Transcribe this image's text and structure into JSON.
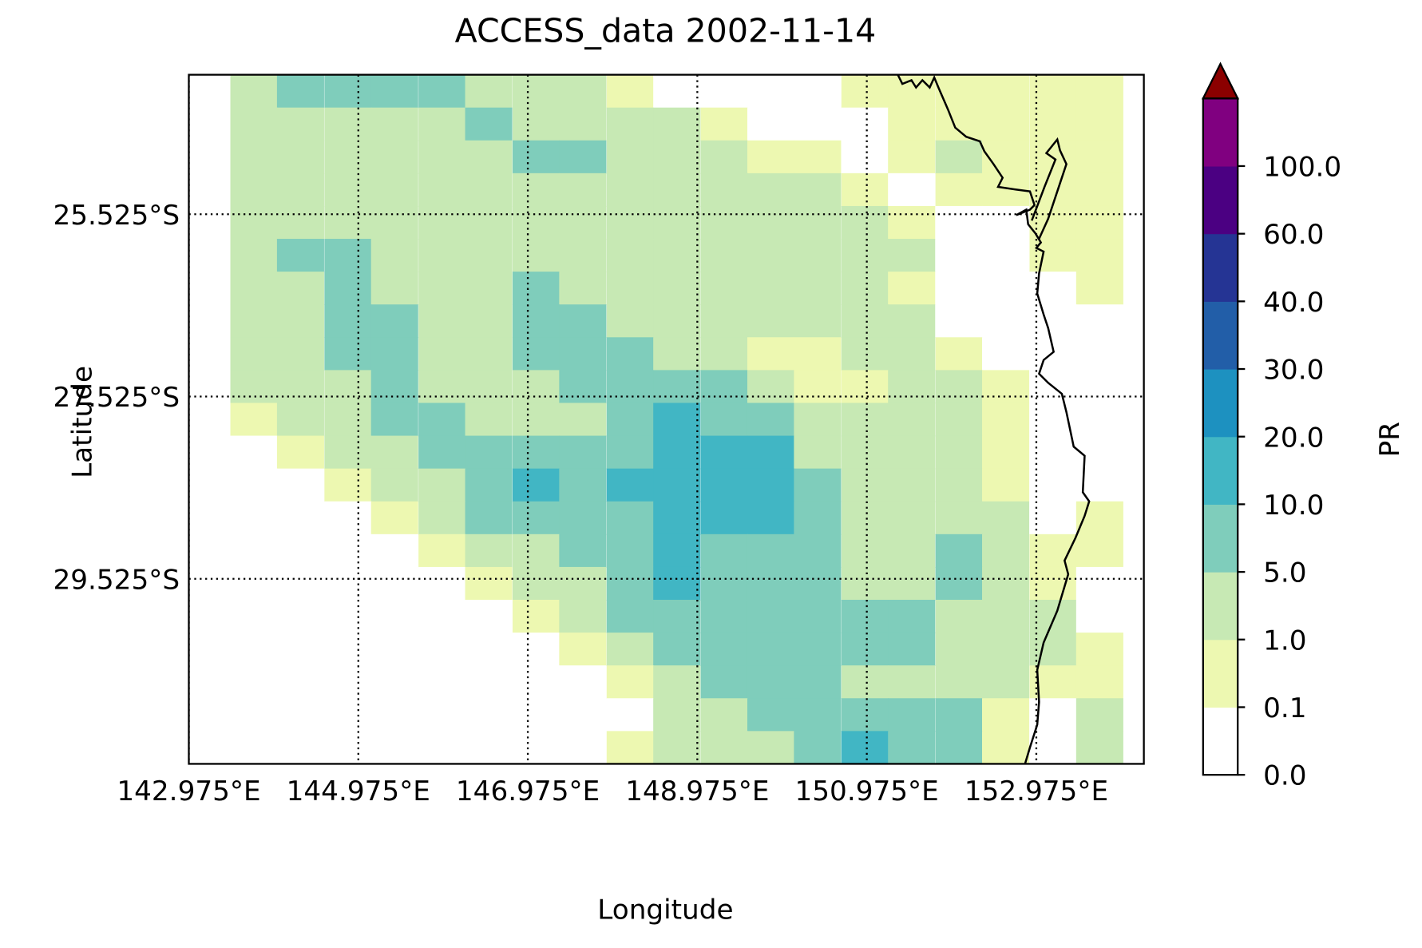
{
  "chart_data": {
    "type": "heatmap",
    "title": "ACCESS_data 2002-11-14",
    "x_label": "Longitude",
    "y_label": "Latitude",
    "colorbar_label": "PR",
    "xlim": [
      142.975,
      154.244
    ],
    "ylim": [
      -31.555,
      -23.995
    ],
    "xticks": [
      {
        "value": 142.975,
        "label": "142.975°E"
      },
      {
        "value": 144.975,
        "label": "144.975°E"
      },
      {
        "value": 146.975,
        "label": "146.975°E"
      },
      {
        "value": 148.975,
        "label": "148.975°E"
      },
      {
        "value": 150.975,
        "label": "150.975°E"
      },
      {
        "value": 152.975,
        "label": "152.975°E"
      }
    ],
    "yticks": [
      {
        "value": -25.525,
        "label": "25.525°S"
      },
      {
        "value": -27.525,
        "label": "27.525°S"
      },
      {
        "value": -29.525,
        "label": "29.525°S"
      }
    ],
    "grid": true,
    "colorbar_ticks": [
      {
        "value": 0,
        "label": "0.0"
      },
      {
        "value": 0.1,
        "label": "0.1"
      },
      {
        "value": 1,
        "label": "1.0"
      },
      {
        "value": 5,
        "label": "5.0"
      },
      {
        "value": 10,
        "label": "10.0"
      },
      {
        "value": 20,
        "label": "20.0"
      },
      {
        "value": 30,
        "label": "30.0"
      },
      {
        "value": 40,
        "label": "40.0"
      },
      {
        "value": 60,
        "label": "60.0"
      },
      {
        "value": 100,
        "label": "100.0"
      }
    ],
    "colors": [
      "#ffffff",
      "#edf8b1",
      "#c7e9b4",
      "#7fcdbb",
      "#41b6c4",
      "#1d91c0",
      "#225ea8",
      "#253494",
      "#4b0082",
      "#800080"
    ],
    "extend_color": "#8b0000",
    "x": [
      143.74,
      144.29,
      144.85,
      145.4,
      145.96,
      146.51,
      147.07,
      147.62,
      148.18,
      148.73,
      149.29,
      149.84,
      150.39,
      150.95,
      151.5,
      152.06,
      152.61,
      153.17,
      153.72
    ],
    "y": [
      -24.175,
      -24.535,
      -24.895,
      -25.255,
      -25.615,
      -25.975,
      -26.335,
      -26.695,
      -27.055,
      -27.415,
      -27.775,
      -28.135,
      -28.495,
      -28.855,
      -29.215,
      -29.575,
      -29.935,
      -30.295,
      -30.655,
      -31.015,
      -31.375
    ],
    "z": [
      [
        3,
        7,
        7,
        7,
        7,
        3,
        3,
        3,
        0.5,
        0.05,
        0.05,
        0.05,
        0.05,
        0.5,
        0.5,
        0.5,
        0.5,
        0.5,
        0.5
      ],
      [
        3,
        3,
        3,
        3,
        3,
        7,
        3,
        3,
        3,
        3,
        0.5,
        0.05,
        0.05,
        0.05,
        0.5,
        0.5,
        0.5,
        0.5,
        0.5
      ],
      [
        3,
        3,
        3,
        3,
        3,
        3,
        7,
        7,
        3,
        3,
        3,
        0.5,
        0.5,
        0.05,
        0.5,
        3,
        0.5,
        0.5,
        0.5
      ],
      [
        3,
        3,
        3,
        3,
        3,
        3,
        3,
        3,
        3,
        3,
        3,
        3,
        3,
        0.5,
        0.05,
        0.5,
        0.5,
        0.5,
        0.5
      ],
      [
        3,
        3,
        3,
        3,
        3,
        3,
        3,
        3,
        3,
        3,
        3,
        3,
        3,
        3,
        0.5,
        0.05,
        0.05,
        0.5,
        0.5
      ],
      [
        3,
        7,
        7,
        3,
        3,
        3,
        3,
        3,
        3,
        3,
        3,
        3,
        3,
        3,
        3,
        0.05,
        0.05,
        0.5,
        0.5
      ],
      [
        3,
        3,
        7,
        3,
        3,
        3,
        7,
        3,
        3,
        3,
        3,
        3,
        3,
        3,
        0.5,
        0.05,
        0.05,
        0.05,
        0.5
      ],
      [
        3,
        3,
        7,
        7,
        3,
        3,
        7,
        7,
        3,
        3,
        3,
        3,
        3,
        3,
        3,
        0.05,
        0.05,
        0.05,
        0.05
      ],
      [
        3,
        3,
        7,
        7,
        3,
        3,
        7,
        7,
        7,
        3,
        3,
        0.5,
        0.5,
        3,
        3,
        0.5,
        0.05,
        0.05,
        0.05
      ],
      [
        3,
        3,
        3,
        7,
        3,
        3,
        3,
        7,
        7,
        7,
        7,
        3,
        0.5,
        0.5,
        3,
        3,
        0.5,
        0.05,
        0.05
      ],
      [
        0.5,
        3,
        3,
        7,
        7,
        3,
        3,
        3,
        7,
        15,
        7,
        7,
        3,
        3,
        3,
        3,
        0.5,
        0.05,
        0.05
      ],
      [
        0.05,
        0.5,
        3,
        3,
        7,
        7,
        7,
        7,
        7,
        15,
        15,
        15,
        3,
        3,
        3,
        3,
        0.5,
        0.05,
        0.05
      ],
      [
        0.05,
        0.05,
        0.5,
        3,
        3,
        7,
        15,
        7,
        15,
        15,
        15,
        15,
        7,
        3,
        3,
        3,
        0.5,
        0.05,
        0.05
      ],
      [
        0.05,
        0.05,
        0.05,
        0.5,
        3,
        7,
        7,
        7,
        7,
        15,
        15,
        15,
        7,
        3,
        3,
        3,
        3,
        0.05,
        0.5
      ],
      [
        0.05,
        0.05,
        0.05,
        0.05,
        0.5,
        3,
        3,
        7,
        7,
        15,
        7,
        7,
        7,
        3,
        3,
        7,
        3,
        0.5,
        0.5
      ],
      [
        0.05,
        0.05,
        0.05,
        0.05,
        0.05,
        0.5,
        3,
        3,
        7,
        15,
        7,
        7,
        7,
        3,
        3,
        7,
        3,
        0.5,
        0.05
      ],
      [
        0.05,
        0.05,
        0.05,
        0.05,
        0.05,
        0.05,
        0.5,
        3,
        7,
        7,
        7,
        7,
        7,
        7,
        7,
        3,
        3,
        3,
        0.05
      ],
      [
        0.05,
        0.05,
        0.05,
        0.05,
        0.05,
        0.05,
        0.05,
        0.5,
        3,
        7,
        7,
        7,
        7,
        7,
        7,
        3,
        3,
        3,
        0.5
      ],
      [
        0.05,
        0.05,
        0.05,
        0.05,
        0.05,
        0.05,
        0.05,
        0.05,
        0.5,
        3,
        7,
        7,
        7,
        3,
        3,
        3,
        3,
        0.5,
        0.5
      ],
      [
        0.05,
        0.05,
        0.05,
        0.05,
        0.05,
        0.05,
        0.05,
        0.05,
        0.05,
        3,
        3,
        7,
        7,
        7,
        7,
        7,
        0.5,
        0.05,
        3
      ],
      [
        0.05,
        0.05,
        0.05,
        0.05,
        0.05,
        0.05,
        0.05,
        0.05,
        0.5,
        3,
        3,
        3,
        7,
        15,
        7,
        7,
        0.5,
        0.05,
        3
      ]
    ]
  }
}
